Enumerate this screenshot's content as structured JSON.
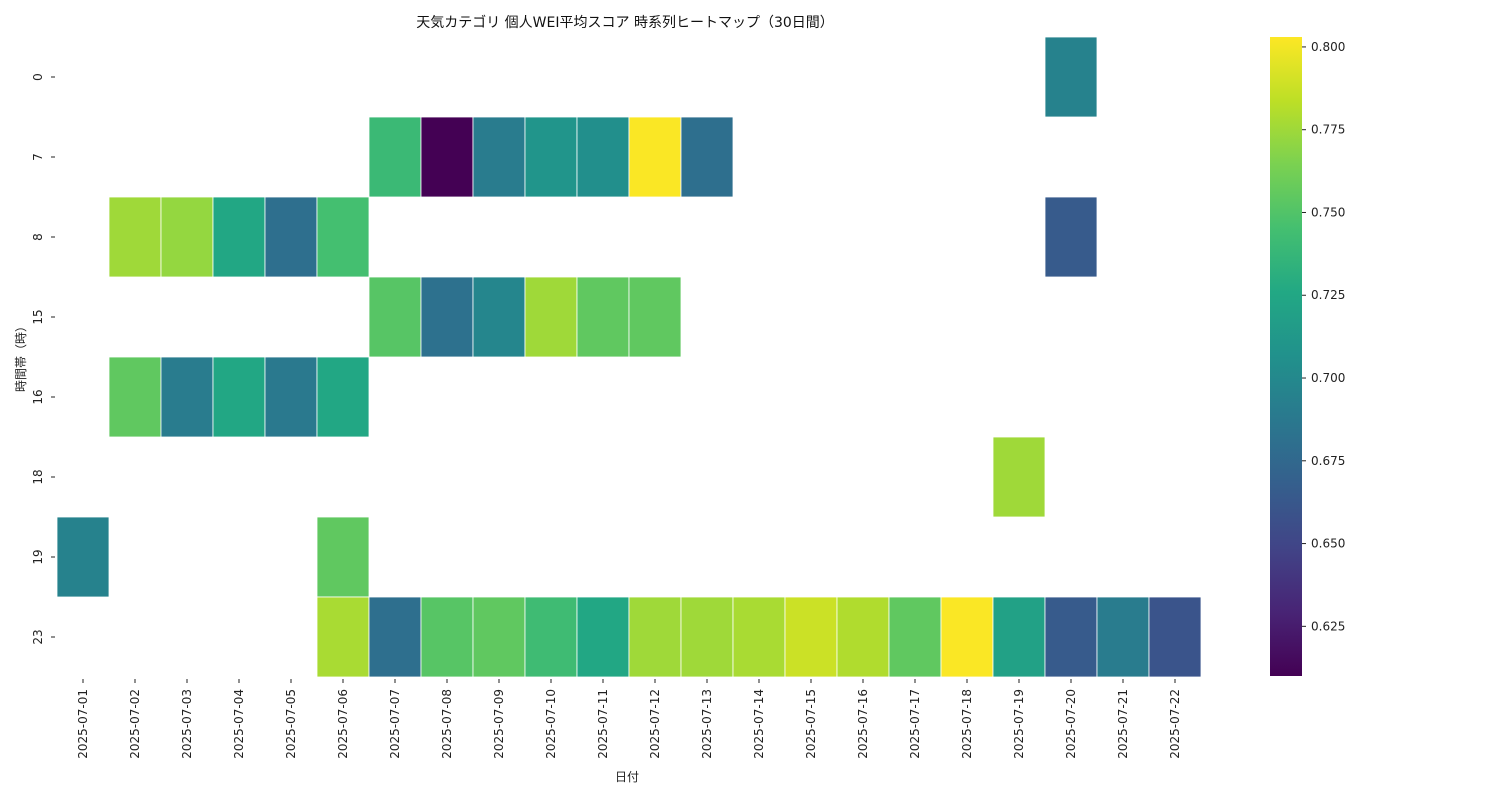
{
  "chart_data": {
    "type": "heatmap",
    "title": "天気カテゴリ 個人WEI平均スコア 時系列ヒートマップ（30日間）",
    "xlabel": "日付",
    "ylabel": "時間帯（時）",
    "x": [
      "2025-07-01",
      "2025-07-02",
      "2025-07-03",
      "2025-07-04",
      "2025-07-05",
      "2025-07-06",
      "2025-07-07",
      "2025-07-08",
      "2025-07-09",
      "2025-07-10",
      "2025-07-11",
      "2025-07-12",
      "2025-07-13",
      "2025-07-14",
      "2025-07-15",
      "2025-07-16",
      "2025-07-17",
      "2025-07-18",
      "2025-07-19",
      "2025-07-20",
      "2025-07-21",
      "2025-07-22"
    ],
    "y": [
      "0",
      "7",
      "8",
      "15",
      "16",
      "18",
      "19",
      "23"
    ],
    "values": [
      [
        null,
        null,
        null,
        null,
        null,
        null,
        null,
        null,
        null,
        null,
        null,
        null,
        null,
        null,
        null,
        null,
        null,
        null,
        null,
        0.695,
        null,
        null
      ],
      [
        null,
        null,
        null,
        null,
        null,
        null,
        0.74,
        0.61,
        0.69,
        0.71,
        0.705,
        0.802,
        0.68,
        null,
        null,
        null,
        null,
        null,
        null,
        null,
        null,
        null
      ],
      [
        null,
        0.775,
        0.772,
        0.725,
        0.68,
        0.745,
        null,
        null,
        null,
        null,
        null,
        null,
        null,
        null,
        null,
        null,
        null,
        null,
        null,
        0.665,
        null,
        null
      ],
      [
        null,
        null,
        null,
        null,
        null,
        null,
        0.752,
        0.682,
        0.698,
        0.775,
        0.755,
        0.755,
        null,
        null,
        null,
        null,
        null,
        null,
        null,
        null,
        null,
        null
      ],
      [
        null,
        0.755,
        0.69,
        0.725,
        0.688,
        0.725,
        null,
        null,
        null,
        null,
        null,
        null,
        null,
        null,
        null,
        null,
        null,
        null,
        null,
        null,
        null,
        null
      ],
      [
        null,
        null,
        null,
        null,
        null,
        null,
        null,
        null,
        null,
        null,
        null,
        null,
        null,
        null,
        null,
        null,
        null,
        null,
        0.775,
        null,
        null,
        null
      ],
      [
        0.695,
        null,
        null,
        null,
        null,
        0.755,
        null,
        null,
        null,
        null,
        null,
        null,
        null,
        null,
        null,
        null,
        null,
        null,
        null,
        null,
        null,
        null
      ],
      [
        null,
        null,
        null,
        null,
        null,
        0.778,
        0.68,
        0.752,
        0.755,
        0.742,
        0.725,
        0.775,
        0.775,
        0.778,
        0.788,
        0.78,
        0.755,
        0.802,
        0.72,
        0.665,
        0.69,
        0.66
      ]
    ],
    "colormap": "viridis",
    "vmin": 0.61,
    "vmax": 0.803,
    "colorbar_ticks": [
      "0.625",
      "0.650",
      "0.675",
      "0.700",
      "0.725",
      "0.750",
      "0.775",
      "0.800"
    ]
  }
}
